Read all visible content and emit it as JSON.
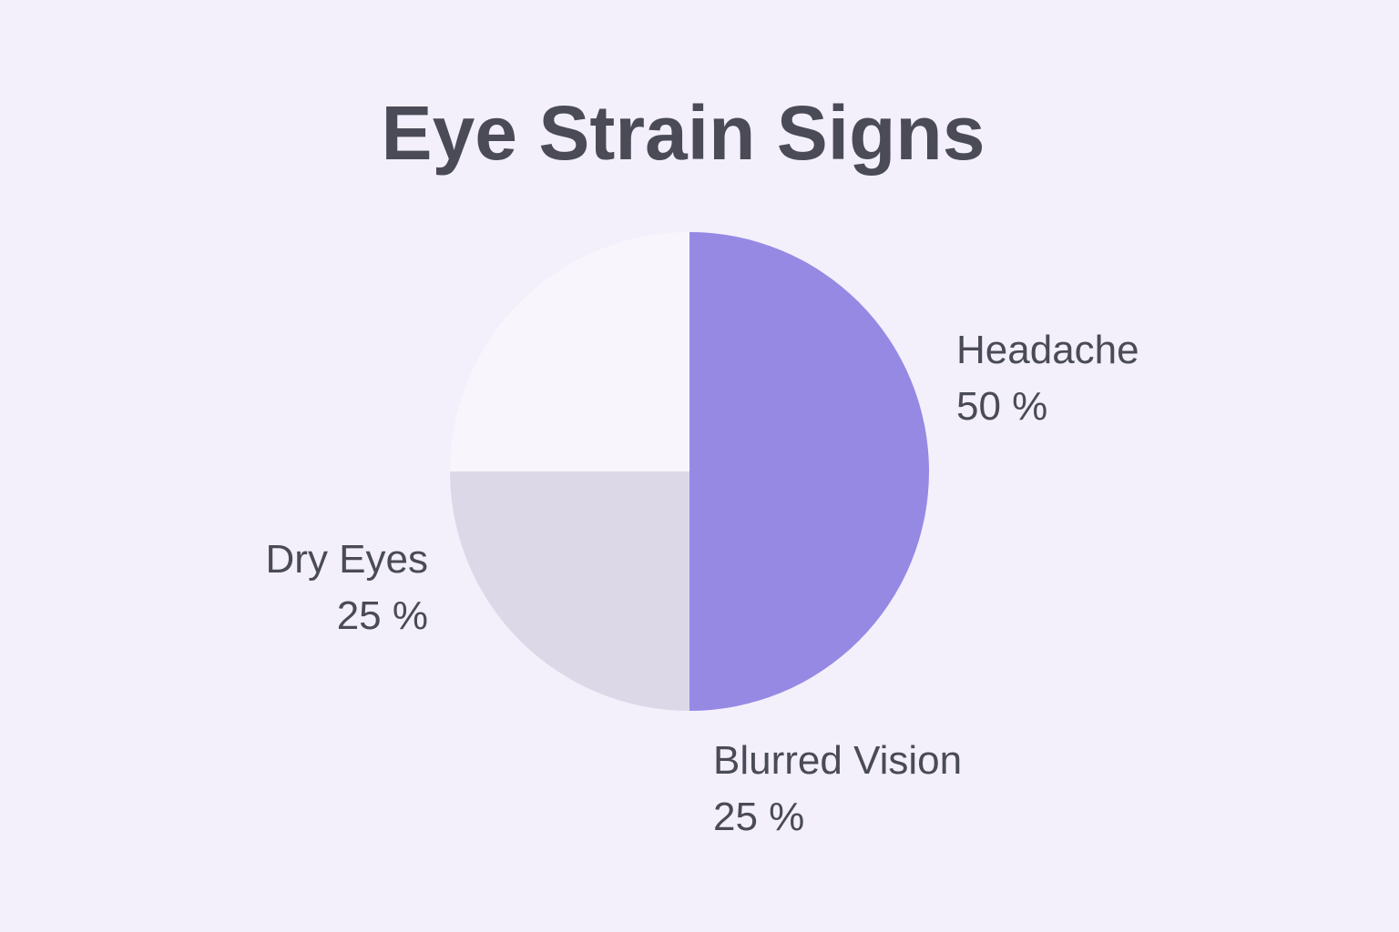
{
  "chart_data": {
    "type": "pie",
    "title": "Eye Strain Signs",
    "slices": [
      {
        "label": "Headache",
        "value": 50,
        "display": "50 %",
        "color": "#9589e4"
      },
      {
        "label": "Blurred Vision",
        "value": 25,
        "display": "25 %",
        "color": "#dcd8e8"
      },
      {
        "label": "Dry Eyes",
        "value": 25,
        "display": "25 %",
        "color": "#f8f5fc"
      }
    ],
    "start_angle": "12 o'clock",
    "direction": "clockwise",
    "legend": "none (direct labels)"
  },
  "background_color": "#f3f0fc"
}
